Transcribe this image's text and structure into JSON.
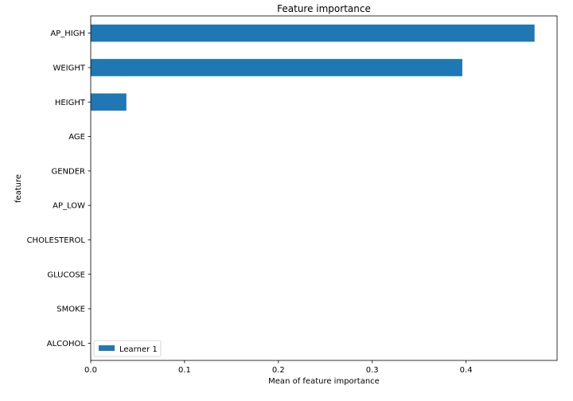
{
  "chart_data": {
    "type": "bar",
    "orientation": "horizontal",
    "title": "Feature importance",
    "xlabel": "Mean of feature importance",
    "ylabel": "feature",
    "categories": [
      "AP_HIGH",
      "WEIGHT",
      "HEIGHT",
      "AGE",
      "GENDER",
      "AP_LOW",
      "CHOLESTEROL",
      "GLUCOSE",
      "SMOKE",
      "ALCOHOL"
    ],
    "series": [
      {
        "name": "Learner 1",
        "color": "#1f77b4",
        "values": [
          0.473,
          0.396,
          0.038,
          0.0,
          0.0,
          0.0,
          0.0,
          0.0,
          0.0,
          0.0
        ]
      }
    ],
    "xlim": [
      0,
      0.497
    ],
    "xticks": [
      0.0,
      0.1,
      0.2,
      0.3,
      0.4
    ],
    "xtick_labels": [
      "0.0",
      "0.1",
      "0.2",
      "0.3",
      "0.4"
    ],
    "grid": false,
    "legend_position": "lower-left"
  }
}
